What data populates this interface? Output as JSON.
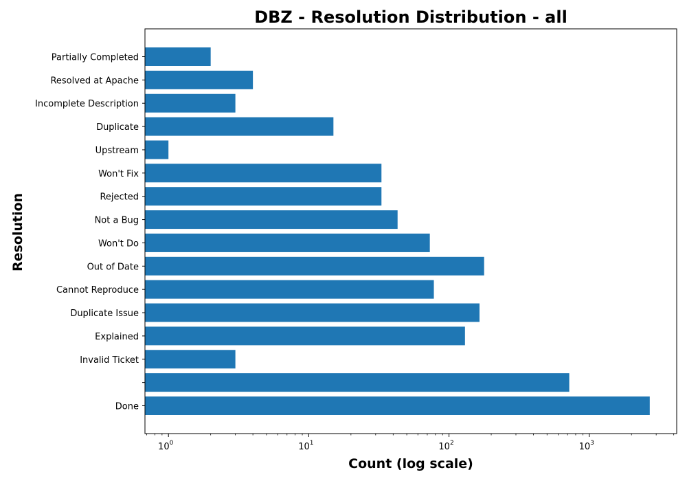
{
  "chart_data": {
    "type": "bar",
    "orientation": "horizontal",
    "title": "DBZ - Resolution Distribution - all",
    "xlabel": "Count (log scale)",
    "ylabel": "Resolution",
    "xscale": "log",
    "xlim": [
      0.68,
      4200
    ],
    "xticks": [
      {
        "base": "10",
        "exp": "0"
      },
      {
        "base": "10",
        "exp": "1"
      },
      {
        "base": "10",
        "exp": "2"
      },
      {
        "base": "10",
        "exp": "3"
      }
    ],
    "categories": [
      "Done",
      "",
      "Invalid Ticket",
      "Explained",
      "Duplicate Issue",
      "Cannot Reproduce",
      "Out of Date",
      "Won't Do",
      "Not a Bug",
      "Rejected",
      "Won't Fix",
      "Upstream",
      "Duplicate",
      "Incomplete Description",
      "Resolved at Apache",
      "Partially Completed"
    ],
    "values": [
      2700,
      720,
      3,
      130,
      165,
      78,
      178,
      73,
      43,
      33,
      33,
      1,
      15,
      3,
      4,
      2
    ],
    "color": "#1f77b4",
    "grid": false
  }
}
